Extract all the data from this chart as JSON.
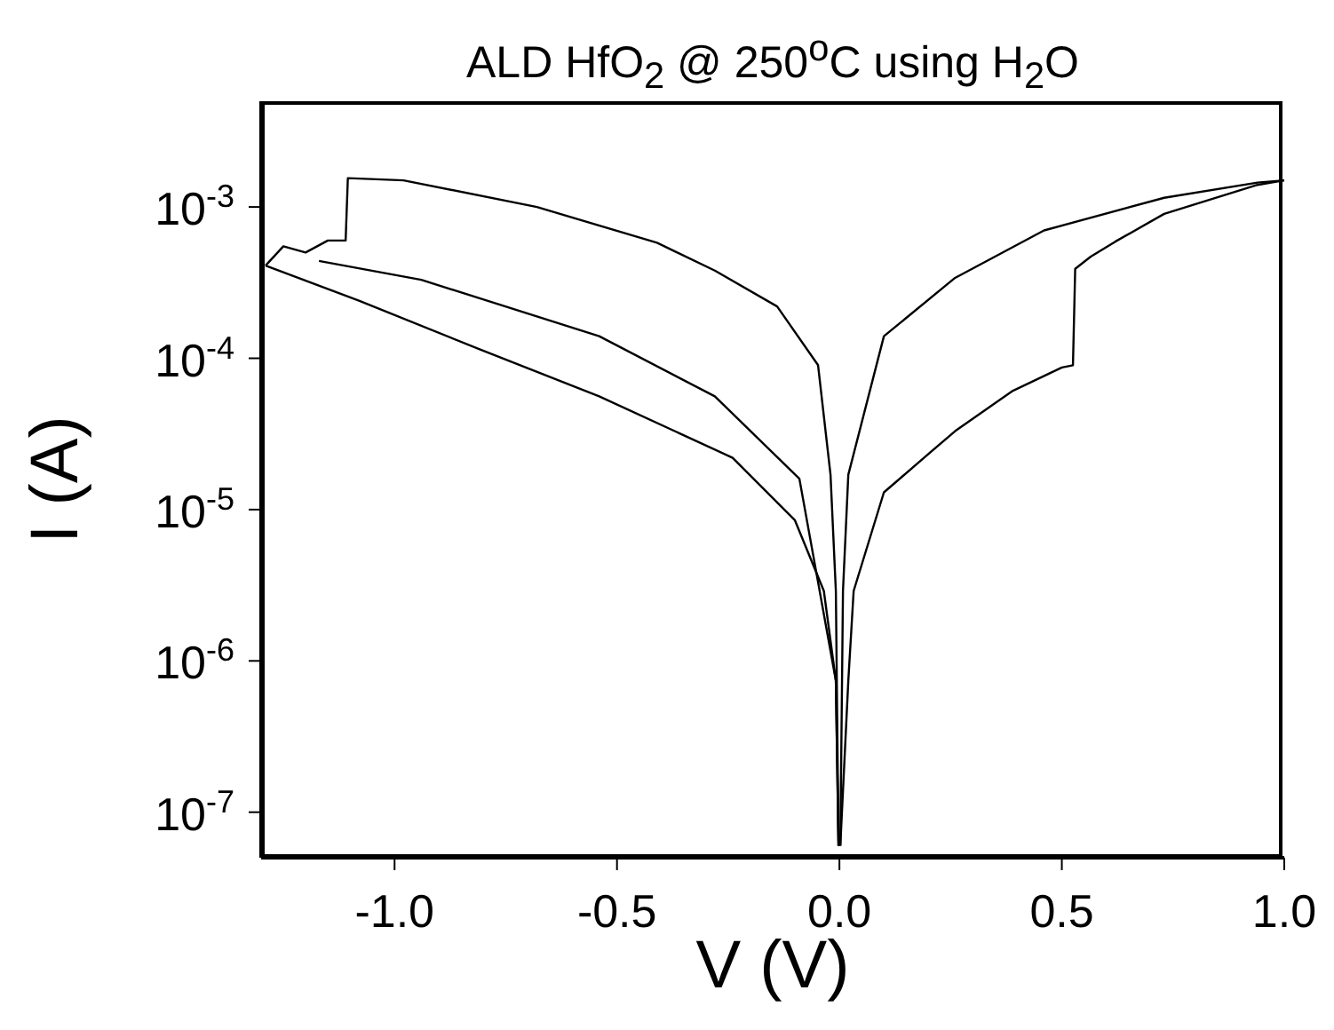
{
  "chart_data": {
    "type": "line",
    "title": "ALD HfO$_{2}$ @ 250$^{o}$C using H$_{2}$O",
    "xlabel": "V (V)",
    "ylabel": "I (A)",
    "log": "y",
    "xlim": [
      -1.3,
      1.0
    ],
    "xticks": [
      {
        "value": -1.0,
        "label": "-1.0"
      },
      {
        "value": -0.5,
        "label": "-0.5"
      },
      {
        "value": 0.0,
        "label": "0.0"
      },
      {
        "value": 0.5,
        "label": "0.5"
      },
      {
        "value": 1.0,
        "label": "1.0"
      }
    ],
    "ylim": [
      5e-08,
      0.005
    ],
    "yticks": [
      {
        "value": 1e-07,
        "label": "10$^{-7}$"
      },
      {
        "value": 1e-06,
        "label": "10$^{-6}$"
      },
      {
        "value": 1e-05,
        "label": "10$^{-5}$"
      },
      {
        "value": 0.0001,
        "label": "10$^{-4}$"
      },
      {
        "value": 0.001,
        "label": "10$^{-3}$"
      }
    ],
    "grid": false,
    "line_style": "solid",
    "series": [
      {
        "color": "#000000",
        "x": [
          -0.002,
          -0.008,
          -0.035,
          -0.1,
          -0.24,
          -0.54,
          -0.81,
          -1.08,
          -1.29
        ],
        "values": [
          6e-08,
          7.4e-07,
          2.9e-06,
          8.5e-06,
          2.2e-05,
          5.6e-05,
          0.000115,
          0.00024,
          0.00041
        ]
      },
      {
        "color": "#000000",
        "x": [
          -1.29,
          -1.25,
          -1.2,
          -1.15,
          -1.11,
          -1.105,
          -0.98,
          -0.68,
          -0.41,
          -0.28,
          -0.14,
          -0.048,
          -0.02,
          -0.008,
          -0.002
        ],
        "values": [
          0.00041,
          0.00055,
          0.0005,
          0.0006,
          0.0006,
          0.00155,
          0.0015,
          0.001,
          0.00058,
          0.00038,
          0.00022,
          9e-05,
          1.7e-05,
          2.9e-06,
          6e-08
        ]
      },
      {
        "color": "#000000",
        "x": [
          -0.002,
          -0.008,
          -0.09,
          -0.28,
          -0.54,
          -0.94,
          -1.17
        ],
        "values": [
          6e-08,
          7.4e-07,
          1.6e-05,
          5.6e-05,
          0.00014,
          0.00033,
          0.00044
        ]
      },
      {
        "color": "#000000",
        "x": [
          0.002,
          0.02,
          0.032,
          0.1,
          0.19,
          0.26,
          0.39,
          0.5,
          0.525,
          0.53,
          0.565,
          0.62,
          0.73,
          0.94,
          1.0
        ],
        "values": [
          6e-08,
          7.4e-07,
          2.9e-06,
          1.3e-05,
          2.2e-05,
          3.3e-05,
          6.1e-05,
          8.7e-05,
          9e-05,
          0.00039,
          0.00047,
          0.00059,
          0.0009,
          0.0014,
          0.0015
        ]
      },
      {
        "color": "#000000",
        "x": [
          0.002,
          0.008,
          0.02,
          0.1,
          0.26,
          0.46,
          0.73,
          0.94,
          1.0
        ],
        "values": [
          6e-08,
          2.9e-06,
          1.7e-05,
          0.00014,
          0.00034,
          0.0007,
          0.00115,
          0.00145,
          0.0015
        ]
      }
    ]
  }
}
